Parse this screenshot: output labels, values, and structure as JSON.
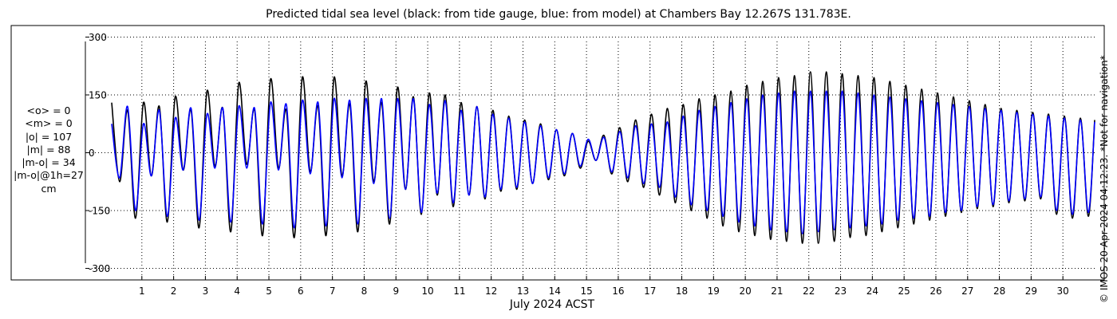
{
  "chart_data": {
    "type": "line",
    "title": "Predicted tidal sea level (black: from tide gauge, blue: from model) at Chambers Bay 12.267S 131.783E.",
    "xlabel": "July 2024 ACST",
    "ylabel": "",
    "units": "cm",
    "xlim": [
      0.0,
      31.0
    ],
    "ylim": [
      -330,
      330
    ],
    "y_ticks": [
      300,
      150,
      0,
      -150,
      -300
    ],
    "x_ticks": [
      1,
      2,
      3,
      4,
      5,
      6,
      7,
      8,
      9,
      10,
      11,
      12,
      13,
      14,
      15,
      16,
      17,
      18,
      19,
      20,
      21,
      22,
      23,
      24,
      25,
      26,
      27,
      28,
      29,
      30
    ],
    "grid": true,
    "legend": "none",
    "series": [
      {
        "color": "#000000",
        "x": [
          0.05,
          0.3,
          0.55,
          0.8,
          1.05,
          1.3,
          1.55,
          1.8,
          2.05,
          2.3,
          2.55,
          2.8,
          3.05,
          3.3,
          3.55,
          3.8,
          4.05,
          4.3,
          4.55,
          4.8,
          5.05,
          5.3,
          5.55,
          5.8,
          6.05,
          6.3,
          6.55,
          6.8,
          7.05,
          7.3,
          7.55,
          7.8,
          8.05,
          8.3,
          8.55,
          8.8,
          9.05,
          9.3,
          9.55,
          9.8,
          10.05,
          10.3,
          10.55,
          10.8,
          11.05,
          11.3,
          11.55,
          11.8,
          12.05,
          12.3,
          12.55,
          12.8,
          13.05,
          13.3,
          13.55,
          13.8,
          14.05,
          14.3,
          14.55,
          14.8,
          15.05,
          15.3,
          15.55,
          15.8,
          16.05,
          16.3,
          16.55,
          16.8,
          17.05,
          17.3,
          17.55,
          17.8,
          18.05,
          18.3,
          18.55,
          18.8,
          19.05,
          19.3,
          19.55,
          19.8,
          20.05,
          20.3,
          20.55,
          20.8,
          21.05,
          21.3,
          21.55,
          21.8,
          22.05,
          22.3,
          22.55,
          22.8,
          23.05,
          23.3,
          23.55,
          23.8,
          24.05,
          24.3,
          24.55,
          24.8,
          25.05,
          25.3,
          25.55,
          25.8,
          26.05,
          26.3,
          26.55,
          26.8,
          27.05,
          27.3,
          27.55,
          27.8,
          28.05,
          28.3,
          28.55,
          28.8,
          29.05,
          29.3,
          29.55,
          29.8,
          30.05,
          30.3,
          30.55,
          30.8,
          31.0
        ],
        "y": [
          130,
          -75,
          110,
          -170,
          130,
          -60,
          120,
          -180,
          145,
          -45,
          110,
          -195,
          160,
          -35,
          115,
          -205,
          180,
          -30,
          110,
          -215,
          190,
          -40,
          110,
          -220,
          195,
          -50,
          120,
          -215,
          195,
          -60,
          125,
          -205,
          185,
          -75,
          130,
          -185,
          170,
          -95,
          145,
          -160,
          155,
          -110,
          150,
          -140,
          130,
          -110,
          120,
          -120,
          110,
          -100,
          95,
          -95,
          85,
          -80,
          75,
          -70,
          60,
          -60,
          50,
          -40,
          30,
          -20,
          45,
          -55,
          65,
          -75,
          85,
          -90,
          100,
          -110,
          115,
          -130,
          125,
          -150,
          140,
          -170,
          150,
          -190,
          160,
          -205,
          175,
          -215,
          185,
          -225,
          195,
          -230,
          200,
          -235,
          210,
          -235,
          210,
          -230,
          205,
          -220,
          200,
          -215,
          195,
          -205,
          185,
          -195,
          175,
          -185,
          165,
          -175,
          155,
          -165,
          145,
          -155,
          135,
          -145,
          125,
          -140,
          115,
          -130,
          110,
          -125,
          105,
          -120,
          100,
          -160,
          95,
          -170,
          90,
          -165,
          85
        ]
      },
      {
        "color": "#0000ff",
        "x": [
          0.05,
          0.3,
          0.55,
          0.8,
          1.05,
          1.3,
          1.55,
          1.8,
          2.05,
          2.3,
          2.55,
          2.8,
          3.05,
          3.3,
          3.55,
          3.8,
          4.05,
          4.3,
          4.55,
          4.8,
          5.05,
          5.3,
          5.55,
          5.8,
          6.05,
          6.3,
          6.55,
          6.8,
          7.05,
          7.3,
          7.55,
          7.8,
          8.05,
          8.3,
          8.55,
          8.8,
          9.05,
          9.3,
          9.55,
          9.8,
          10.05,
          10.3,
          10.55,
          10.8,
          11.05,
          11.3,
          11.55,
          11.8,
          12.05,
          12.3,
          12.55,
          12.8,
          13.05,
          13.3,
          13.55,
          13.8,
          14.05,
          14.3,
          14.55,
          14.8,
          15.05,
          15.3,
          15.55,
          15.8,
          16.05,
          16.3,
          16.55,
          16.8,
          17.05,
          17.3,
          17.55,
          17.8,
          18.05,
          18.3,
          18.55,
          18.8,
          19.05,
          19.3,
          19.55,
          19.8,
          20.05,
          20.3,
          20.55,
          20.8,
          21.05,
          21.3,
          21.55,
          21.8,
          22.05,
          22.3,
          22.55,
          22.8,
          23.05,
          23.3,
          23.55,
          23.8,
          24.05,
          24.3,
          24.55,
          24.8,
          25.05,
          25.3,
          25.55,
          25.8,
          26.05,
          26.3,
          26.55,
          26.8,
          27.05,
          27.3,
          27.55,
          27.8,
          28.05,
          28.3,
          28.55,
          28.8,
          29.05,
          29.3,
          29.55,
          29.8,
          30.05,
          30.3,
          30.55,
          30.8,
          31.0
        ],
        "y": [
          75,
          -65,
          120,
          -150,
          75,
          -60,
          110,
          -165,
          90,
          -45,
          115,
          -175,
          100,
          -40,
          115,
          -180,
          120,
          -40,
          115,
          -185,
          130,
          -45,
          125,
          -195,
          135,
          -55,
          130,
          -190,
          140,
          -65,
          135,
          -185,
          140,
          -80,
          140,
          -170,
          140,
          -95,
          140,
          -155,
          125,
          -105,
          135,
          -130,
          110,
          -110,
          120,
          -115,
          100,
          -95,
          90,
          -90,
          80,
          -80,
          70,
          -65,
          60,
          -55,
          50,
          -35,
          35,
          -20,
          40,
          -50,
          55,
          -65,
          70,
          -80,
          75,
          -90,
          80,
          -115,
          95,
          -135,
          110,
          -150,
          120,
          -165,
          130,
          -180,
          140,
          -190,
          150,
          -200,
          155,
          -205,
          160,
          -210,
          160,
          -205,
          160,
          -200,
          160,
          -195,
          155,
          -190,
          150,
          -185,
          145,
          -175,
          140,
          -170,
          135,
          -165,
          130,
          -155,
          125,
          -150,
          120,
          -140,
          115,
          -135,
          110,
          -125,
          105,
          -120,
          100,
          -115,
          95,
          -150,
          90,
          -160,
          85,
          -155,
          80
        ]
      }
    ]
  },
  "stats": [
    "<o> = 0",
    "<m> = 0",
    "|o| = 107",
    "|m| = 88",
    "|m-o| = 34",
    "|m-o|@1h=27",
    "cm"
  ],
  "copyright": "© IMOS 20-Apr-2024 04:12:23. *Not for navigation*"
}
